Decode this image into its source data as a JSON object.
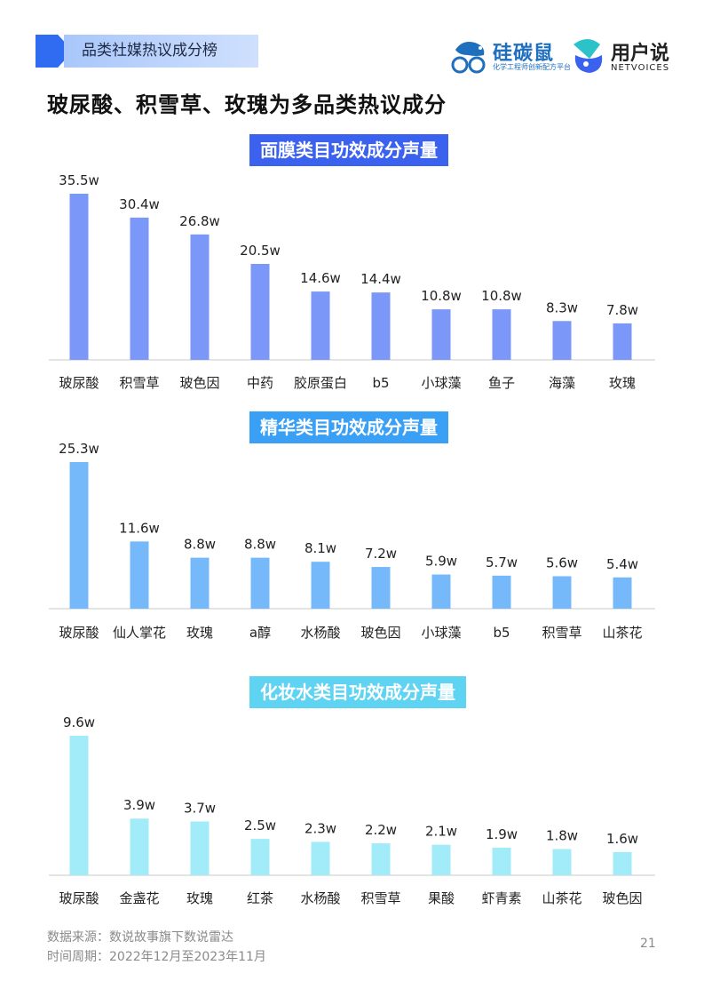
{
  "header": {
    "section_label": "品类社媒热议成分榜",
    "logo1_name": "硅碳鼠",
    "logo1_sub": "化学工程师创新配方平台",
    "logo2_name": "用户说",
    "logo2_sub": "NETVOICES"
  },
  "headline": "玻尿酸、积雪草、玫瑰为多品类热议成分",
  "chart_data": [
    {
      "type": "bar",
      "title": "面膜类目功效成分声量",
      "color": "#7b97f7",
      "title_bg": "#3a62ef",
      "categories": [
        "玻尿酸",
        "积雪草",
        "玻色因",
        "中药",
        "胶原蛋白",
        "b5",
        "小球藻",
        "鱼子",
        "海藻",
        "玫瑰"
      ],
      "values": [
        35.5,
        30.4,
        26.8,
        20.5,
        14.6,
        14.4,
        10.8,
        10.8,
        8.3,
        7.8
      ],
      "labels": [
        "35.5w",
        "30.4w",
        "26.8w",
        "20.5w",
        "14.6w",
        "14.4w",
        "10.8w",
        "10.8w",
        "8.3w",
        "7.8w"
      ]
    },
    {
      "type": "bar",
      "title": "精华类目功效成分声量",
      "color": "#76b9fb",
      "title_bg": "#3aa0f5",
      "categories": [
        "玻尿酸",
        "仙人掌花",
        "玫瑰",
        "a醇",
        "水杨酸",
        "玻色因",
        "小球藻",
        "b5",
        "积雪草",
        "山茶花"
      ],
      "values": [
        25.3,
        11.6,
        8.8,
        8.8,
        8.1,
        7.2,
        5.9,
        5.7,
        5.6,
        5.4
      ],
      "labels": [
        "25.3w",
        "11.6w",
        "8.8w",
        "8.8w",
        "8.1w",
        "7.2w",
        "5.9w",
        "5.7w",
        "5.6w",
        "5.4w"
      ]
    },
    {
      "type": "bar",
      "title": "化妆水类目功效成分声量",
      "color": "#a2ecfa",
      "title_bg": "#5fd3f2",
      "categories": [
        "玻尿酸",
        "金盏花",
        "玫瑰",
        "红茶",
        "水杨酸",
        "积雪草",
        "果酸",
        "虾青素",
        "山茶花",
        "玻色因"
      ],
      "values": [
        9.6,
        3.9,
        3.7,
        2.5,
        2.3,
        2.2,
        2.1,
        1.9,
        1.8,
        1.6
      ],
      "labels": [
        "9.6w",
        "3.9w",
        "3.7w",
        "2.5w",
        "2.3w",
        "2.2w",
        "2.1w",
        "1.9w",
        "1.8w",
        "1.6w"
      ]
    }
  ],
  "footer": {
    "source": "数据来源：数说故事旗下数说雷达",
    "period": "时间周期：2022年12月至2023年11月",
    "page": "21"
  }
}
